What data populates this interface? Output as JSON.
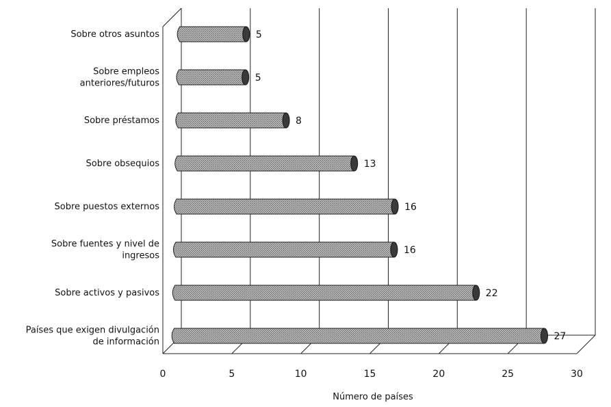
{
  "chart_data": {
    "type": "bar",
    "orientation": "horizontal",
    "categories": [
      "Sobre otros asuntos",
      "Sobre empleos\nanteriores/futuros",
      "Sobre préstamos",
      "Sobre obsequios",
      "Sobre puestos externos",
      "Sobre fuentes y nivel de\ningresos",
      "Sobre activos y pasivos",
      "Países que exigen divulgación\nde información"
    ],
    "values": [
      5,
      5,
      8,
      13,
      16,
      16,
      22,
      27
    ],
    "data_labels": [
      "5",
      "5",
      "8",
      "13",
      "16",
      "16",
      "22",
      "27"
    ],
    "title": "",
    "xlabel": "Número de países",
    "ylabel": "",
    "xlim": [
      0,
      30
    ],
    "xticks": [
      0,
      5,
      10,
      15,
      20,
      25,
      30
    ],
    "xtick_labels": [
      "0",
      "5",
      "10",
      "15",
      "20",
      "25",
      "30"
    ],
    "grid": "vertical",
    "legend": "none",
    "style": "3d-cylinder",
    "colors": {
      "bar_fill": "#9a9a9a",
      "bar_dark": "#3a3a3a",
      "grid": "#222222"
    }
  }
}
